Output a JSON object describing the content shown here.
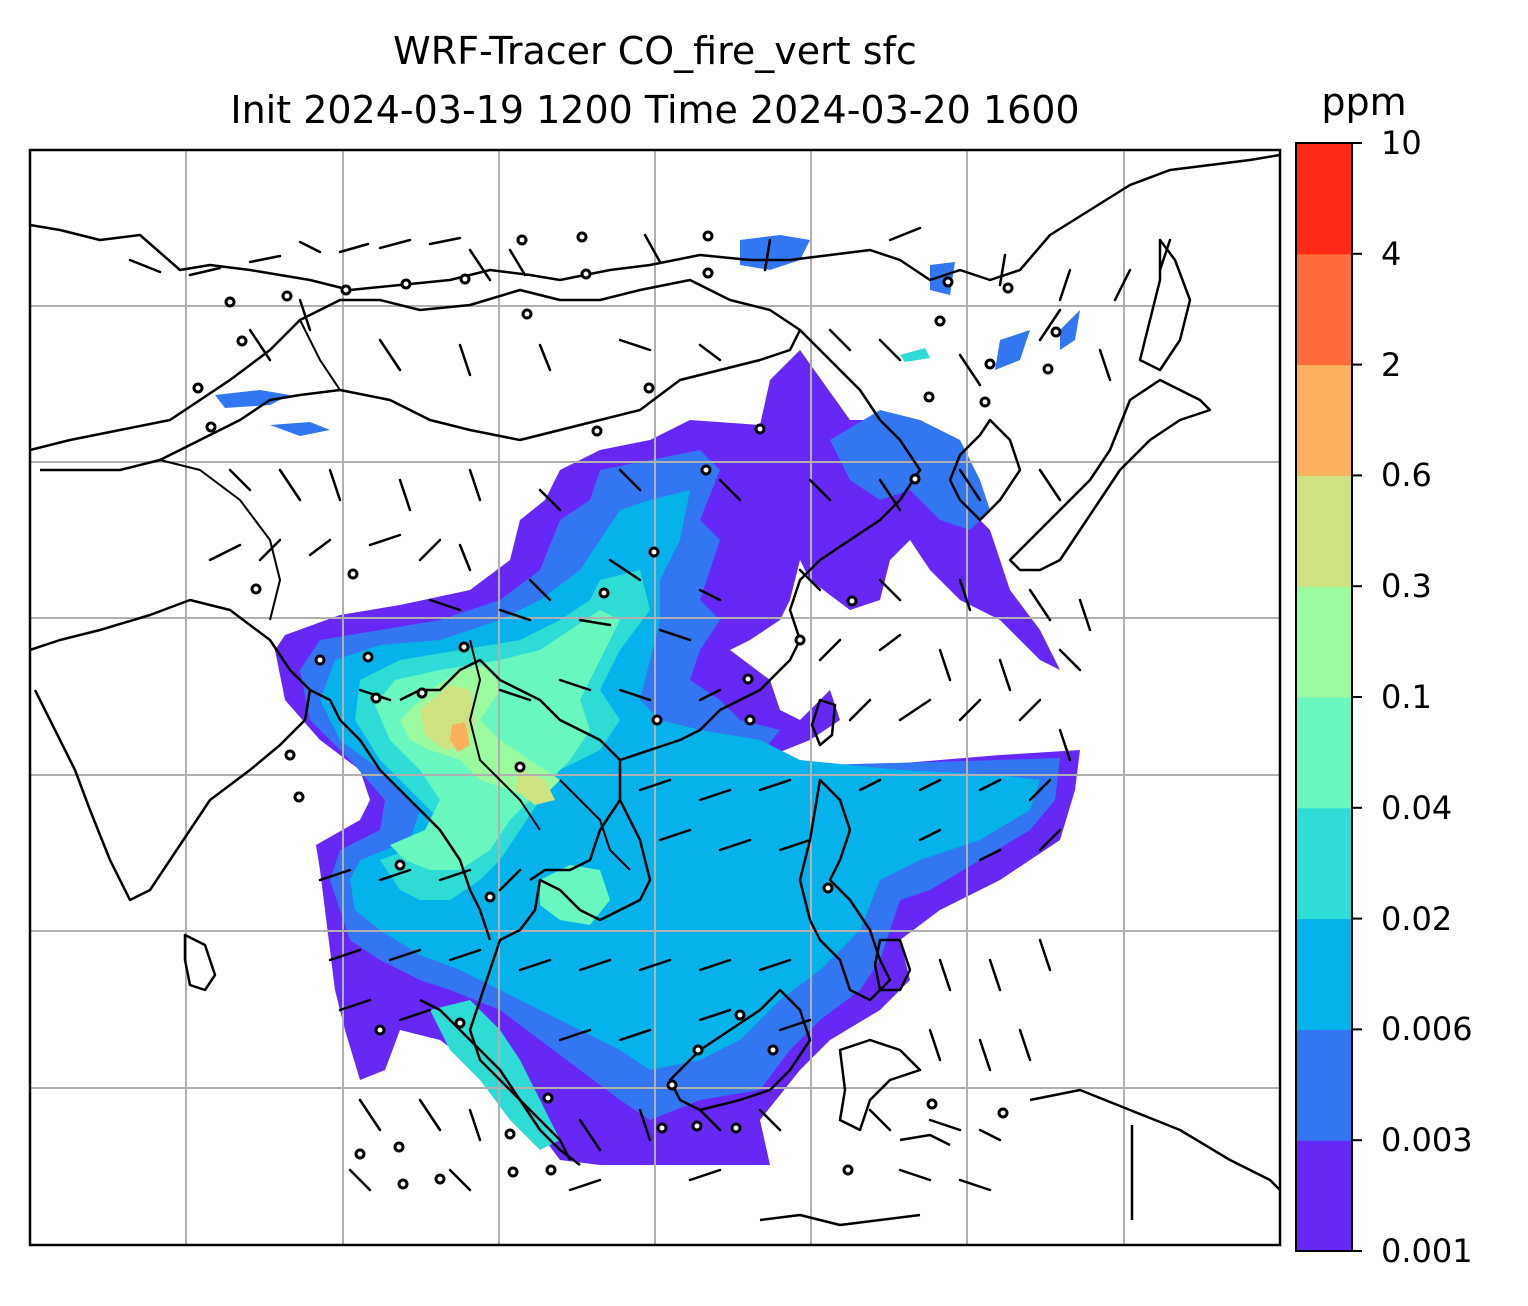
{
  "title": {
    "line1": "WRF-Tracer CO_fire_vert sfc",
    "line2": "Init 2024-03-19 1200 Time 2024-03-20 1600"
  },
  "colorbar": {
    "unit": "ppm",
    "levels": [
      "0.001",
      "0.003",
      "0.006",
      "0.02",
      "0.04",
      "0.1",
      "0.3",
      "0.6",
      "2",
      "4",
      "10"
    ],
    "colors": [
      "#6629f5",
      "#3276f2",
      "#05b2ea",
      "#2fdcd5",
      "#68f7bf",
      "#9afa9d",
      "#cfe281",
      "#fcb05e",
      "#ff6c3a",
      "#ff2918"
    ]
  },
  "map": {
    "gridlines": "on",
    "coastlines": "on",
    "country_borders": "on",
    "wind_barbs": "on",
    "field": "CO_fire_vert",
    "level": "sfc"
  }
}
